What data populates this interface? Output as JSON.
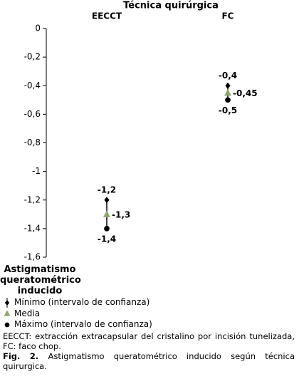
{
  "chart_data": {
    "type": "range",
    "title": "Técnica quirúrgica",
    "y_label": "Astigmatismo queratométrico inducido",
    "categories": [
      "EECCT",
      "FC"
    ],
    "series": [
      {
        "name": "Mínimo (intervalo de confianza)",
        "color": "#000000",
        "marker": "diamond",
        "label_position": "above",
        "values": [
          -1.2,
          -0.4
        ],
        "value_labels": [
          "-1,2",
          "-0,4"
        ]
      },
      {
        "name": "Media",
        "color": "#8fa66e",
        "marker": "triangle",
        "label_position": "right",
        "values": [
          -1.3,
          -0.45
        ],
        "value_labels": [
          "-1,3",
          "-0,45"
        ]
      },
      {
        "name": "Máximo (intervalo de confianza)",
        "color": "#000000",
        "marker": "circle",
        "label_position": "below",
        "values": [
          -1.4,
          -0.5
        ],
        "value_labels": [
          "-1,4",
          "-0,5"
        ]
      }
    ],
    "ylim": [
      -1.6,
      0
    ],
    "yticks": [
      0,
      {
        "value": -0.2,
        "label": "-0,2"
      },
      {
        "value": -0.4,
        "label": "-0,4"
      },
      {
        "value": -0.6,
        "label": "-0,6"
      },
      {
        "value": -0.8,
        "label": "-0,8"
      },
      -1,
      {
        "value": -1.2,
        "label": "-1,2"
      },
      {
        "value": -1.4,
        "label": "-1,4"
      },
      {
        "value": -1.6,
        "label": "-1,6"
      }
    ],
    "high_low_lines": true,
    "grid": false
  },
  "caption": {
    "note": "EECCT: extracción extracapsular del cristalino por incisión tunelizada, FC: faco chop.",
    "label": "Fig. 2.",
    "text": "Astigmatismo queratométrico inducido según técnica quirurgica."
  }
}
